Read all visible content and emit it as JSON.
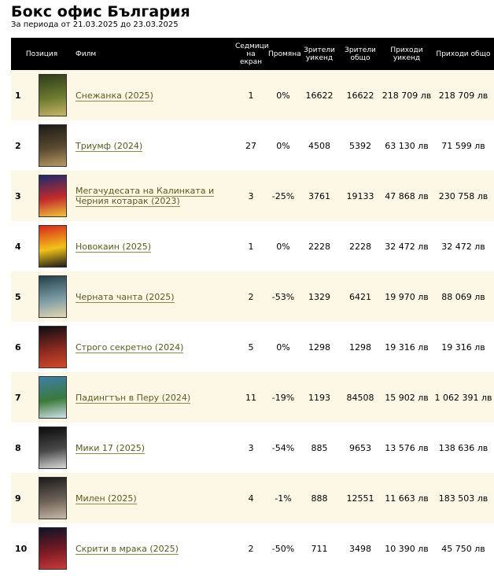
{
  "page": {
    "title": "Бокс офис България",
    "period": "За периода от 21.03.2025 до 23.03.2025"
  },
  "columns": {
    "position": "Позиция",
    "film": "Филм",
    "weeks": "Седмици на екран",
    "change": "Промяна",
    "viewers_weekend": "Зрители уикенд",
    "viewers_total": "Зрители общо",
    "revenue_weekend": "Приходи уикенд",
    "revenue_total": "Приходи общо"
  },
  "rows": [
    {
      "pos": "1",
      "title": "Снежанка (2025)",
      "weeks": "1",
      "change": "0%",
      "viewers_weekend": "16622",
      "viewers_total": "16622",
      "revenue_weekend": "218 709 лв",
      "revenue_total": "218 709 лв",
      "poster_colors": [
        "#2f3b1c",
        "#6b7a2e",
        "#c9b46a"
      ]
    },
    {
      "pos": "2",
      "title": "Триумф (2024)",
      "weeks": "27",
      "change": "0%",
      "viewers_weekend": "4508",
      "viewers_total": "5392",
      "revenue_weekend": "63 130 лв",
      "revenue_total": "71 599 лв",
      "poster_colors": [
        "#1c1a16",
        "#5a4a30",
        "#b89a64"
      ]
    },
    {
      "pos": "3",
      "title": "Мегачудесата на Калинката и Черния котарак (2023)",
      "weeks": "3",
      "change": "-25%",
      "viewers_weekend": "3761",
      "viewers_total": "19133",
      "revenue_weekend": "47 868 лв",
      "revenue_total": "230 758 лв",
      "poster_colors": [
        "#1c2a6e",
        "#c22a2a",
        "#f0c23a"
      ]
    },
    {
      "pos": "4",
      "title": "Новокаин (2025)",
      "weeks": "1",
      "change": "0%",
      "viewers_weekend": "2228",
      "viewers_total": "2228",
      "revenue_weekend": "32 472 лв",
      "revenue_total": "32 472 лв",
      "poster_colors": [
        "#d8261e",
        "#f2c21a",
        "#1b1b1b"
      ]
    },
    {
      "pos": "5",
      "title": "Черната чанта (2025)",
      "weeks": "2",
      "change": "-53%",
      "viewers_weekend": "1329",
      "viewers_total": "6421",
      "revenue_weekend": "19 970 лв",
      "revenue_total": "88 069 лв",
      "poster_colors": [
        "#22404a",
        "#7a9aa4",
        "#e2d6b0"
      ]
    },
    {
      "pos": "6",
      "title": "Строго секретно (2024)",
      "weeks": "5",
      "change": "0%",
      "viewers_weekend": "1298",
      "viewers_total": "1298",
      "revenue_weekend": "19 316 лв",
      "revenue_total": "19 316 лв",
      "poster_colors": [
        "#0d0d12",
        "#8a2a20",
        "#d44a2a"
      ]
    },
    {
      "pos": "7",
      "title": "Падингтън в Перу (2024)",
      "weeks": "11",
      "change": "-19%",
      "viewers_weekend": "1193",
      "viewers_total": "84508",
      "revenue_weekend": "15 902 лв",
      "revenue_total": "1 062 391 лв",
      "poster_colors": [
        "#3f7ea8",
        "#3a7a3a",
        "#cfe0ea"
      ]
    },
    {
      "pos": "8",
      "title": "Мики 17 (2025)",
      "weeks": "3",
      "change": "-54%",
      "viewers_weekend": "885",
      "viewers_total": "9653",
      "revenue_weekend": "13 576 лв",
      "revenue_total": "138 636 лв",
      "poster_colors": [
        "#0b0b0b",
        "#4a4a4a",
        "#d8d8d8"
      ]
    },
    {
      "pos": "9",
      "title": "Милен (2025)",
      "weeks": "4",
      "change": "-1%",
      "viewers_weekend": "888",
      "viewers_total": "12551",
      "revenue_weekend": "11 663 лв",
      "revenue_total": "183 503 лв",
      "poster_colors": [
        "#1a1a1a",
        "#6e6258",
        "#c8b8a8"
      ]
    },
    {
      "pos": "10",
      "title": "Скрити в мрака (2025)",
      "weeks": "2",
      "change": "-50%",
      "viewers_weekend": "711",
      "viewers_total": "3498",
      "revenue_weekend": "10 390 лв",
      "revenue_total": "45 750 лв",
      "poster_colors": [
        "#0e1424",
        "#7a1a24",
        "#c83a3a"
      ]
    }
  ]
}
